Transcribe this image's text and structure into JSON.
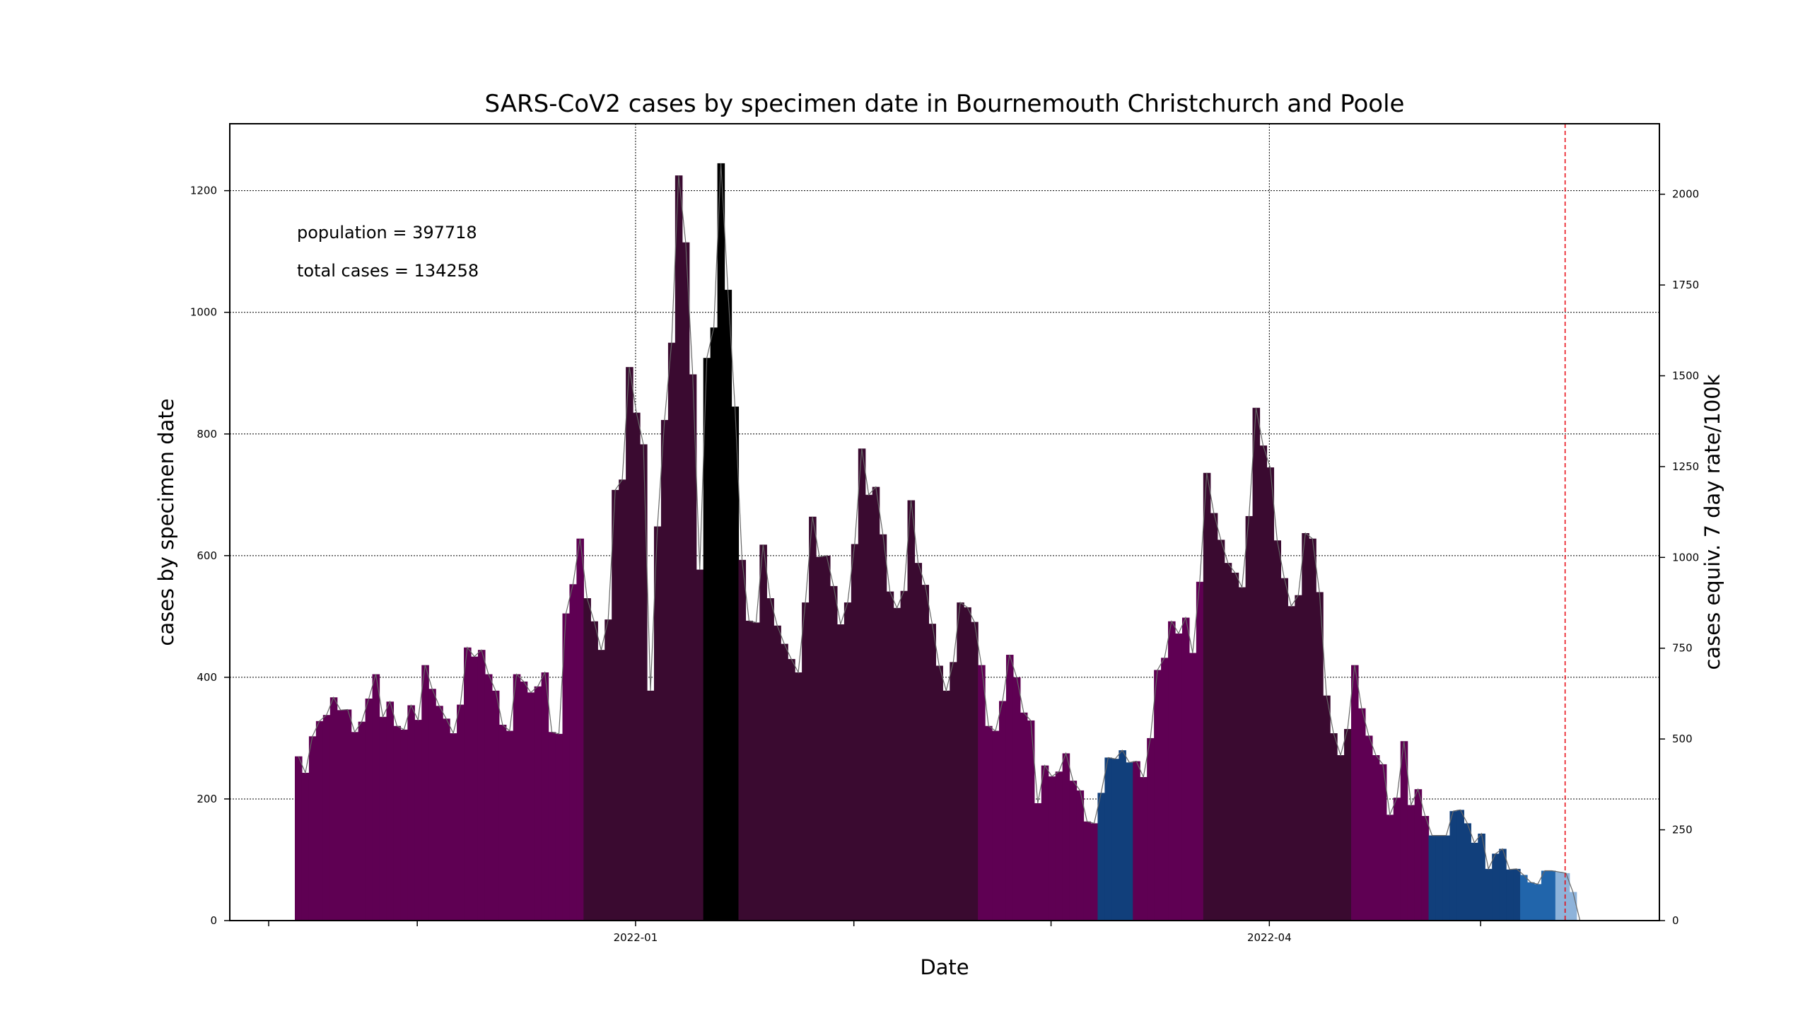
{
  "chart_data": {
    "type": "bar",
    "title": "SARS-CoV2 cases by specimen date in Bournemouth Christchurch and Poole",
    "xlabel": "Date",
    "ylabel": "cases by specimen date",
    "y2label": "cases equiv. 7 day rate/100k",
    "annotations": [
      "population = 397718",
      "total cases = 134258"
    ],
    "x_start": "2021-11-10",
    "ylim": [
      0,
      1310
    ],
    "y2lim": [
      0,
      2194
    ],
    "yticks": [
      0,
      200,
      400,
      600,
      800,
      1000,
      1200
    ],
    "y2ticks": [
      0,
      250,
      500,
      750,
      1000,
      1250,
      1500,
      1750,
      2000
    ],
    "xticks": [
      {
        "date": "2021-11-10",
        "label": ""
      },
      {
        "date": "2021-12-01",
        "label": ""
      },
      {
        "date": "2022-01-01",
        "label": "2022-01"
      },
      {
        "date": "2022-02-01",
        "label": ""
      },
      {
        "date": "2022-03-01",
        "label": ""
      },
      {
        "date": "2022-04-01",
        "label": "2022-04"
      },
      {
        "date": "2022-05-01",
        "label": ""
      }
    ],
    "vgrid_dates": [
      "2022-01-01",
      "2022-04-01"
    ],
    "marker_line_date": "2022-05-13",
    "grid": true,
    "colors": {
      "purple": "#5f0053",
      "dark_purple": "#3a0a30",
      "black": "#000000",
      "navy": "#113f7b",
      "blue": "#2165ab",
      "light_blue": "#8eb3da",
      "marker_line": "#e8000b",
      "trend_line": "#666666"
    },
    "values": [
      270,
      243,
      303,
      328,
      338,
      367,
      346,
      347,
      310,
      327,
      365,
      405,
      335,
      360,
      320,
      314,
      354,
      330,
      420,
      381,
      353,
      332,
      308,
      355,
      449,
      434,
      445,
      405,
      378,
      322,
      312,
      405,
      393,
      375,
      385,
      408,
      310,
      307,
      505,
      553,
      628,
      530,
      492,
      445,
      495,
      708,
      725,
      910,
      835,
      783,
      378,
      648,
      823,
      950,
      1225,
      1115,
      898,
      577,
      925,
      975,
      1245,
      1037,
      845,
      593,
      493,
      490,
      618,
      530,
      485,
      455,
      430,
      408,
      523,
      664,
      598,
      600,
      550,
      487,
      523,
      619,
      776,
      700,
      713,
      635,
      541,
      514,
      542,
      691,
      588,
      552,
      488,
      419,
      378,
      425,
      523,
      515,
      491,
      420,
      320,
      312,
      361,
      437,
      400,
      342,
      329,
      193,
      255,
      237,
      245,
      275,
      230,
      214,
      163,
      160,
      210,
      268,
      266,
      280,
      260,
      262,
      236,
      300,
      412,
      432,
      492,
      472,
      498,
      440,
      557,
      736,
      670,
      626,
      588,
      572,
      548,
      665,
      843,
      781,
      745,
      625,
      563,
      517,
      535,
      637,
      628,
      540,
      370,
      308,
      272,
      315,
      420,
      349,
      304,
      272,
      257,
      174,
      202,
      295,
      190,
      216,
      172,
      140,
      140,
      140,
      180,
      182,
      160,
      128,
      143,
      85,
      110,
      118,
      84,
      85,
      75,
      63,
      60,
      82,
      82,
      80,
      78,
      47,
      0
    ],
    "bar_colors": [
      "purple",
      "purple",
      "purple",
      "purple",
      "purple",
      "purple",
      "purple",
      "purple",
      "purple",
      "purple",
      "purple",
      "purple",
      "purple",
      "purple",
      "purple",
      "purple",
      "purple",
      "purple",
      "purple",
      "purple",
      "purple",
      "purple",
      "purple",
      "purple",
      "purple",
      "purple",
      "purple",
      "purple",
      "purple",
      "purple",
      "purple",
      "purple",
      "purple",
      "purple",
      "purple",
      "purple",
      "purple",
      "purple",
      "purple",
      "purple",
      "purple",
      "dark_purple",
      "dark_purple",
      "dark_purple",
      "dark_purple",
      "dark_purple",
      "dark_purple",
      "dark_purple",
      "dark_purple",
      "dark_purple",
      "dark_purple",
      "dark_purple",
      "dark_purple",
      "dark_purple",
      "dark_purple",
      "dark_purple",
      "dark_purple",
      "dark_purple",
      "black",
      "black",
      "black",
      "black",
      "black",
      "dark_purple",
      "dark_purple",
      "dark_purple",
      "dark_purple",
      "dark_purple",
      "dark_purple",
      "dark_purple",
      "dark_purple",
      "dark_purple",
      "dark_purple",
      "dark_purple",
      "dark_purple",
      "dark_purple",
      "dark_purple",
      "dark_purple",
      "dark_purple",
      "dark_purple",
      "dark_purple",
      "dark_purple",
      "dark_purple",
      "dark_purple",
      "dark_purple",
      "dark_purple",
      "dark_purple",
      "dark_purple",
      "dark_purple",
      "dark_purple",
      "dark_purple",
      "dark_purple",
      "dark_purple",
      "dark_purple",
      "dark_purple",
      "dark_purple",
      "dark_purple",
      "purple",
      "purple",
      "purple",
      "purple",
      "purple",
      "purple",
      "purple",
      "purple",
      "purple",
      "purple",
      "purple",
      "purple",
      "purple",
      "purple",
      "purple",
      "purple",
      "purple",
      "navy",
      "navy",
      "navy",
      "navy",
      "navy",
      "purple",
      "purple",
      "purple",
      "purple",
      "purple",
      "purple",
      "purple",
      "purple",
      "purple",
      "purple",
      "dark_purple",
      "dark_purple",
      "dark_purple",
      "dark_purple",
      "dark_purple",
      "dark_purple",
      "dark_purple",
      "dark_purple",
      "dark_purple",
      "dark_purple",
      "dark_purple",
      "dark_purple",
      "dark_purple",
      "dark_purple",
      "dark_purple",
      "dark_purple",
      "dark_purple",
      "dark_purple",
      "dark_purple",
      "dark_purple",
      "dark_purple",
      "purple",
      "purple",
      "purple",
      "purple",
      "purple",
      "purple",
      "purple",
      "purple",
      "purple",
      "purple",
      "purple",
      "navy",
      "navy",
      "navy",
      "navy",
      "navy",
      "navy",
      "navy",
      "navy",
      "navy",
      "navy",
      "navy",
      "navy",
      "navy",
      "blue",
      "blue",
      "blue",
      "blue",
      "blue",
      "light_blue",
      "light_blue",
      "light_blue",
      "light_blue",
      "light_blue"
    ]
  }
}
